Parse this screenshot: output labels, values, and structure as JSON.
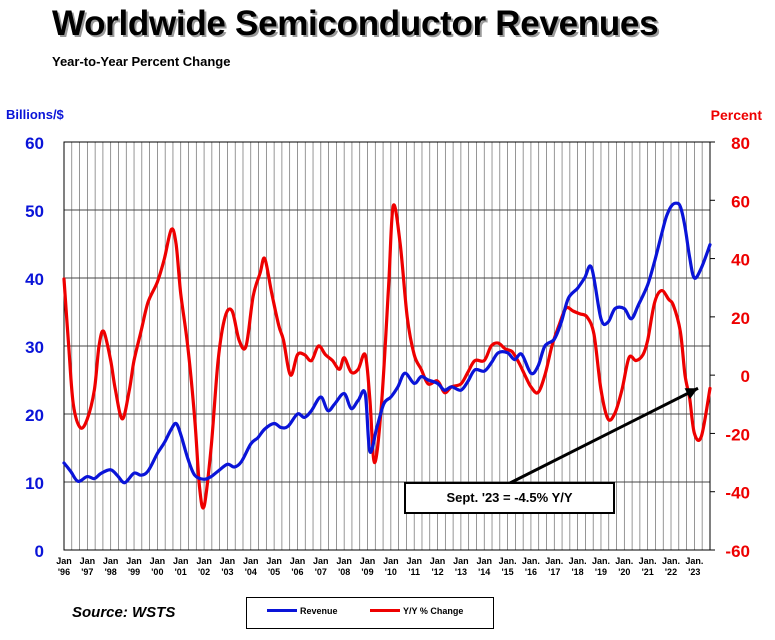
{
  "header": {
    "title": "Worldwide Semiconductor Revenues",
    "subtitle": "Year-to-Year Percent Change"
  },
  "footer": {
    "source": "Source: WSTS"
  },
  "colors": {
    "revenue": "#0a14d8",
    "yoy": "#ee0000",
    "grid": "#555555"
  },
  "chart_data": {
    "type": "line",
    "title": "Worldwide Semiconductor Revenues",
    "subtitle": "Year-to-Year Percent Change",
    "y_left_label": "Billions/$",
    "y_right_label": "Percent",
    "y_left_range": [
      0,
      60
    ],
    "y_right_range": [
      -60,
      80
    ],
    "y_left_ticks": [
      "0",
      "10",
      "20",
      "30",
      "40",
      "50",
      "60"
    ],
    "y_right_ticks": [
      "-60",
      "-40",
      "-20",
      "0",
      "20",
      "40",
      "60",
      "80"
    ],
    "x_range": [
      1996.0,
      2023.67
    ],
    "grid": true,
    "x_ticks": [
      {
        "top": "Jan",
        "bottom": "'96"
      },
      {
        "top": "Jan",
        "bottom": "'97"
      },
      {
        "top": "Jan",
        "bottom": "'98"
      },
      {
        "top": "Jan",
        "bottom": "'99"
      },
      {
        "top": "Jan",
        "bottom": "'00"
      },
      {
        "top": "Jan",
        "bottom": "'01"
      },
      {
        "top": "Jan",
        "bottom": "'02"
      },
      {
        "top": "Jan",
        "bottom": "'03"
      },
      {
        "top": "Jan",
        "bottom": "'04"
      },
      {
        "top": "Jan",
        "bottom": "'05"
      },
      {
        "top": "Jan",
        "bottom": "'06"
      },
      {
        "top": "Jan",
        "bottom": "'07"
      },
      {
        "top": "Jan",
        "bottom": "'08"
      },
      {
        "top": "Jan",
        "bottom": "'09"
      },
      {
        "top": "Jan",
        "bottom": "'10"
      },
      {
        "top": "Jan",
        "bottom": "'11"
      },
      {
        "top": "Jan",
        "bottom": "'12"
      },
      {
        "top": "Jan",
        "bottom": "'13"
      },
      {
        "top": "Jan",
        "bottom": "'14"
      },
      {
        "top": "Jan.",
        "bottom": "'15"
      },
      {
        "top": "Jan.",
        "bottom": "'16"
      },
      {
        "top": "Jan.",
        "bottom": "'17"
      },
      {
        "top": "Jan.",
        "bottom": "'18"
      },
      {
        "top": "Jan.",
        "bottom": "'19"
      },
      {
        "top": "Jan.",
        "bottom": "'20"
      },
      {
        "top": "Jan.",
        "bottom": "'21"
      },
      {
        "top": "Jan.",
        "bottom": "'22"
      },
      {
        "top": "Jan.",
        "bottom": "'23"
      }
    ],
    "series": [
      {
        "name": "Revenue",
        "axis": "left",
        "color": "#0a14d8",
        "points": [
          [
            1996.0,
            12.8
          ],
          [
            1996.3,
            11.5
          ],
          [
            1996.6,
            10.1
          ],
          [
            1997.0,
            10.8
          ],
          [
            1997.3,
            10.5
          ],
          [
            1997.6,
            11.3
          ],
          [
            1998.0,
            11.8
          ],
          [
            1998.3,
            10.9
          ],
          [
            1998.6,
            9.9
          ],
          [
            1999.0,
            11.3
          ],
          [
            1999.3,
            11.0
          ],
          [
            1999.6,
            11.6
          ],
          [
            2000.0,
            14.2
          ],
          [
            2000.3,
            15.8
          ],
          [
            2000.6,
            17.8
          ],
          [
            2000.8,
            18.6
          ],
          [
            2001.0,
            17.0
          ],
          [
            2001.3,
            13.5
          ],
          [
            2001.6,
            11.0
          ],
          [
            2002.0,
            10.4
          ],
          [
            2002.3,
            10.8
          ],
          [
            2002.6,
            11.6
          ],
          [
            2003.0,
            12.6
          ],
          [
            2003.3,
            12.2
          ],
          [
            2003.6,
            13.0
          ],
          [
            2004.0,
            15.6
          ],
          [
            2004.3,
            16.5
          ],
          [
            2004.6,
            17.8
          ],
          [
            2005.0,
            18.6
          ],
          [
            2005.3,
            18.0
          ],
          [
            2005.6,
            18.2
          ],
          [
            2006.0,
            20.0
          ],
          [
            2006.3,
            19.5
          ],
          [
            2006.6,
            20.5
          ],
          [
            2007.0,
            22.5
          ],
          [
            2007.3,
            20.5
          ],
          [
            2007.6,
            21.5
          ],
          [
            2008.0,
            23.0
          ],
          [
            2008.3,
            20.8
          ],
          [
            2008.6,
            22.0
          ],
          [
            2008.9,
            23.0
          ],
          [
            2009.1,
            14.5
          ],
          [
            2009.4,
            18.0
          ],
          [
            2009.7,
            21.5
          ],
          [
            2010.0,
            22.5
          ],
          [
            2010.3,
            24.0
          ],
          [
            2010.6,
            26.0
          ],
          [
            2011.0,
            24.5
          ],
          [
            2011.3,
            25.5
          ],
          [
            2011.6,
            25.0
          ],
          [
            2012.0,
            24.5
          ],
          [
            2012.3,
            23.5
          ],
          [
            2012.6,
            24.0
          ],
          [
            2013.0,
            23.5
          ],
          [
            2013.3,
            24.8
          ],
          [
            2013.6,
            26.5
          ],
          [
            2014.0,
            26.3
          ],
          [
            2014.3,
            27.5
          ],
          [
            2014.6,
            29.0
          ],
          [
            2015.0,
            29.0
          ],
          [
            2015.3,
            28.0
          ],
          [
            2015.6,
            28.8
          ],
          [
            2016.0,
            26.0
          ],
          [
            2016.3,
            27.0
          ],
          [
            2016.6,
            30.0
          ],
          [
            2017.0,
            31.0
          ],
          [
            2017.3,
            33.5
          ],
          [
            2017.6,
            37.0
          ],
          [
            2018.0,
            38.5
          ],
          [
            2018.3,
            40.0
          ],
          [
            2018.6,
            41.5
          ],
          [
            2019.0,
            34.0
          ],
          [
            2019.3,
            33.5
          ],
          [
            2019.6,
            35.5
          ],
          [
            2020.0,
            35.5
          ],
          [
            2020.3,
            34.0
          ],
          [
            2020.6,
            36.0
          ],
          [
            2021.0,
            39.0
          ],
          [
            2021.3,
            42.5
          ],
          [
            2021.6,
            46.5
          ],
          [
            2021.8,
            49.0
          ],
          [
            2022.0,
            50.5
          ],
          [
            2022.2,
            51.0
          ],
          [
            2022.4,
            50.5
          ],
          [
            2022.6,
            47.5
          ],
          [
            2022.8,
            43.0
          ],
          [
            2023.0,
            40.0
          ],
          [
            2023.3,
            41.5
          ],
          [
            2023.67,
            44.9
          ]
        ]
      },
      {
        "name": "Y/Y % Change",
        "axis": "right",
        "color": "#ee0000",
        "points": [
          [
            1996.0,
            33
          ],
          [
            1996.2,
            10
          ],
          [
            1996.4,
            -10
          ],
          [
            1996.7,
            -18
          ],
          [
            1997.0,
            -15
          ],
          [
            1997.3,
            -5
          ],
          [
            1997.5,
            10
          ],
          [
            1997.7,
            15
          ],
          [
            1998.0,
            5
          ],
          [
            1998.2,
            -5
          ],
          [
            1998.5,
            -15
          ],
          [
            1998.8,
            -5
          ],
          [
            1999.0,
            5
          ],
          [
            1999.3,
            15
          ],
          [
            1999.6,
            25
          ],
          [
            2000.0,
            32
          ],
          [
            2000.3,
            40
          ],
          [
            2000.6,
            50
          ],
          [
            2000.8,
            45
          ],
          [
            2001.0,
            28
          ],
          [
            2001.3,
            10
          ],
          [
            2001.6,
            -15
          ],
          [
            2001.8,
            -38
          ],
          [
            2002.0,
            -45
          ],
          [
            2002.3,
            -25
          ],
          [
            2002.6,
            5
          ],
          [
            2002.9,
            20
          ],
          [
            2003.2,
            22
          ],
          [
            2003.5,
            12
          ],
          [
            2003.8,
            10
          ],
          [
            2004.1,
            27
          ],
          [
            2004.4,
            35
          ],
          [
            2004.6,
            40
          ],
          [
            2004.9,
            28
          ],
          [
            2005.2,
            17
          ],
          [
            2005.4,
            12
          ],
          [
            2005.7,
            0
          ],
          [
            2006.0,
            7
          ],
          [
            2006.3,
            7
          ],
          [
            2006.6,
            5
          ],
          [
            2006.9,
            10
          ],
          [
            2007.2,
            7
          ],
          [
            2007.5,
            5
          ],
          [
            2007.8,
            2
          ],
          [
            2008.0,
            6
          ],
          [
            2008.3,
            1
          ],
          [
            2008.6,
            2
          ],
          [
            2008.9,
            7
          ],
          [
            2009.1,
            -8
          ],
          [
            2009.3,
            -30
          ],
          [
            2009.6,
            -10
          ],
          [
            2009.9,
            30
          ],
          [
            2010.1,
            58
          ],
          [
            2010.4,
            45
          ],
          [
            2010.7,
            20
          ],
          [
            2011.0,
            7
          ],
          [
            2011.3,
            2
          ],
          [
            2011.6,
            -3
          ],
          [
            2012.0,
            -2
          ],
          [
            2012.3,
            -6
          ],
          [
            2012.6,
            -4
          ],
          [
            2013.0,
            -3
          ],
          [
            2013.3,
            1
          ],
          [
            2013.6,
            5
          ],
          [
            2014.0,
            5
          ],
          [
            2014.3,
            10
          ],
          [
            2014.6,
            11
          ],
          [
            2014.9,
            9
          ],
          [
            2015.2,
            8
          ],
          [
            2015.5,
            4
          ],
          [
            2015.8,
            -1
          ],
          [
            2016.0,
            -4
          ],
          [
            2016.3,
            -6
          ],
          [
            2016.6,
            0
          ],
          [
            2016.9,
            10
          ],
          [
            2017.2,
            17
          ],
          [
            2017.5,
            23
          ],
          [
            2017.8,
            22
          ],
          [
            2018.1,
            21
          ],
          [
            2018.4,
            20
          ],
          [
            2018.7,
            14
          ],
          [
            2019.0,
            -5
          ],
          [
            2019.3,
            -15
          ],
          [
            2019.6,
            -13
          ],
          [
            2019.9,
            -5
          ],
          [
            2020.2,
            6
          ],
          [
            2020.5,
            5
          ],
          [
            2020.8,
            7
          ],
          [
            2021.0,
            12
          ],
          [
            2021.3,
            25
          ],
          [
            2021.6,
            29
          ],
          [
            2021.9,
            26
          ],
          [
            2022.1,
            24
          ],
          [
            2022.4,
            15
          ],
          [
            2022.6,
            0
          ],
          [
            2022.8,
            -8
          ],
          [
            2023.0,
            -20
          ],
          [
            2023.3,
            -21
          ],
          [
            2023.67,
            -4.5
          ]
        ]
      }
    ],
    "annotation": {
      "text": "Sept. '23 = -4.5% Y/Y",
      "points_to": [
        2023.67,
        -4.5
      ]
    }
  },
  "legend": {
    "items": [
      {
        "label": "Revenue",
        "color": "#0a14d8"
      },
      {
        "label": "Y/Y % Change",
        "color": "#ee0000"
      }
    ]
  }
}
